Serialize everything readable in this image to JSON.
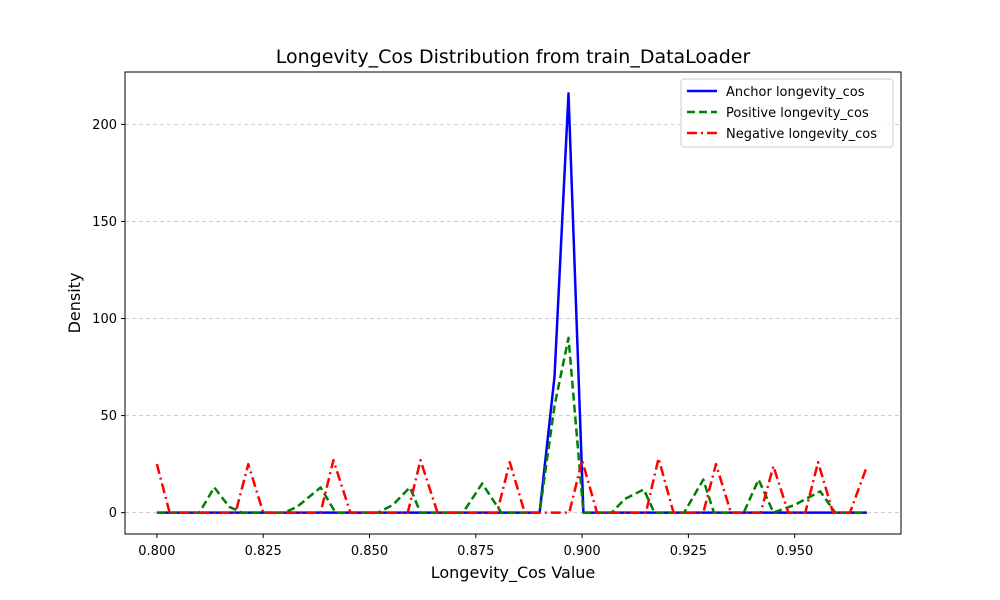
{
  "chart_data": {
    "type": "line",
    "title": "Longevity_Cos Distribution from train_DataLoader",
    "xlabel": "Longevity_Cos Value",
    "ylabel": "Density",
    "xlim": [
      0.7925,
      0.975
    ],
    "ylim": [
      -11,
      227
    ],
    "xticks": [
      0.8,
      0.825,
      0.85,
      0.875,
      0.9,
      0.925,
      0.95
    ],
    "xtick_labels": [
      "0.800",
      "0.825",
      "0.850",
      "0.875",
      "0.900",
      "0.925",
      "0.950"
    ],
    "yticks": [
      0,
      50,
      100,
      150,
      200
    ],
    "ytick_labels": [
      "0",
      "50",
      "100",
      "150",
      "200"
    ],
    "grid": "y-dashed",
    "legend_position": "top-right",
    "series": [
      {
        "name": "Anchor longevity_cos",
        "color": "#0000ff",
        "dash": "solid",
        "x": [
          0.8,
          0.89,
          0.8935,
          0.8968,
          0.9003,
          0.967
        ],
        "y": [
          0,
          0,
          70,
          216,
          0,
          0
        ]
      },
      {
        "name": "Positive longevity_cos",
        "color": "#008000",
        "dash": "dashed",
        "x": [
          0.8,
          0.81,
          0.8135,
          0.817,
          0.82,
          0.83,
          0.833,
          0.8385,
          0.842,
          0.852,
          0.8555,
          0.8595,
          0.862,
          0.872,
          0.8765,
          0.881,
          0.89,
          0.8935,
          0.8968,
          0.9003,
          0.907,
          0.91,
          0.9145,
          0.917,
          0.924,
          0.9285,
          0.931,
          0.938,
          0.9415,
          0.945,
          0.95,
          0.956,
          0.9595,
          0.967
        ],
        "y": [
          0,
          0,
          13,
          3,
          0,
          0,
          3,
          13,
          0,
          0,
          4,
          13,
          0,
          0,
          15,
          0,
          0,
          55,
          90,
          0,
          0,
          7,
          12,
          0,
          0,
          17,
          0,
          0,
          17,
          0,
          4,
          11,
          0,
          0
        ]
      },
      {
        "name": "Negative longevity_cos",
        "color": "#ff0000",
        "dash": "dashdot",
        "x": [
          0.8,
          0.803,
          0.8185,
          0.8215,
          0.825,
          0.8385,
          0.8415,
          0.8455,
          0.859,
          0.862,
          0.866,
          0.88,
          0.883,
          0.8865,
          0.897,
          0.9,
          0.9035,
          0.915,
          0.918,
          0.9215,
          0.9285,
          0.9315,
          0.935,
          0.942,
          0.945,
          0.9485,
          0.9525,
          0.9555,
          0.959,
          0.963,
          0.967
        ],
        "y": [
          25,
          0,
          0,
          25,
          0,
          0,
          27,
          0,
          0,
          27,
          0,
          0,
          26,
          0,
          0,
          27,
          0,
          0,
          28,
          0,
          0,
          25,
          0,
          0,
          24,
          0,
          0,
          26,
          0,
          0,
          24
        ]
      }
    ]
  }
}
